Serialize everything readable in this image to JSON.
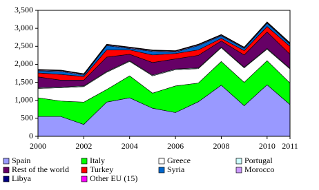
{
  "chart_data": {
    "type": "area",
    "stacked": true,
    "x": [
      2000,
      2001,
      2002,
      2003,
      2004,
      2005,
      2006,
      2007,
      2008,
      2009,
      2010,
      2011
    ],
    "xlim": [
      2000,
      2011
    ],
    "xticks": [
      2000,
      2002,
      2004,
      2006,
      2008,
      2010,
      2011
    ],
    "ylim": [
      0,
      3500
    ],
    "yticks": [
      0,
      {
        "value": 500,
        "label": "500"
      },
      {
        "value": 1000,
        "label": "1,000"
      },
      {
        "value": 1500,
        "label": "1,500"
      },
      {
        "value": 2000,
        "label": "2,000"
      },
      {
        "value": 2500,
        "label": "2,500"
      },
      {
        "value": 3000,
        "label": "3,000"
      },
      {
        "value": 3500,
        "label": "3,500"
      }
    ],
    "grid": false,
    "legend": "bottom",
    "series": [
      {
        "name": "Spain",
        "color": "#9999ff",
        "values": [
          550,
          550,
          330,
          950,
          1070,
          780,
          660,
          960,
          1420,
          850,
          1430,
          880
        ]
      },
      {
        "name": "Italy",
        "color": "#00ff00",
        "values": [
          520,
          430,
          620,
          350,
          610,
          420,
          740,
          520,
          660,
          650,
          670,
          600
        ]
      },
      {
        "name": "Greece",
        "color": "#ffffff",
        "values": [
          260,
          370,
          430,
          480,
          400,
          480,
          450,
          400,
          380,
          400,
          320,
          390
        ]
      },
      {
        "name": "Portugal",
        "color": "#ccffff",
        "values": [
          20,
          20,
          20,
          20,
          20,
          20,
          20,
          20,
          20,
          20,
          20,
          20
        ]
      },
      {
        "name": "Rest of the world",
        "color": "#660066",
        "values": [
          300,
          190,
          160,
          400,
          180,
          350,
          280,
          350,
          170,
          340,
          460,
          390
        ]
      },
      {
        "name": "Turkey",
        "color": "#ff0000",
        "values": [
          110,
          160,
          100,
          200,
          120,
          210,
          150,
          150,
          70,
          120,
          150,
          220
        ]
      },
      {
        "name": "Syria",
        "color": "#0066cc",
        "values": [
          60,
          80,
          40,
          120,
          40,
          100,
          40,
          120,
          70,
          60,
          90,
          60
        ]
      },
      {
        "name": "Morocco",
        "color": "#cc99ff",
        "values": [
          20,
          20,
          20,
          20,
          20,
          20,
          20,
          20,
          20,
          20,
          20,
          20
        ]
      },
      {
        "name": "Libya",
        "color": "#000080",
        "values": [
          10,
          10,
          10,
          10,
          10,
          10,
          10,
          10,
          10,
          10,
          10,
          10
        ]
      },
      {
        "name": "Other EU (15)",
        "color": "#ff00ff",
        "values": [
          10,
          10,
          10,
          10,
          10,
          10,
          10,
          10,
          10,
          10,
          10,
          10
        ]
      }
    ]
  }
}
